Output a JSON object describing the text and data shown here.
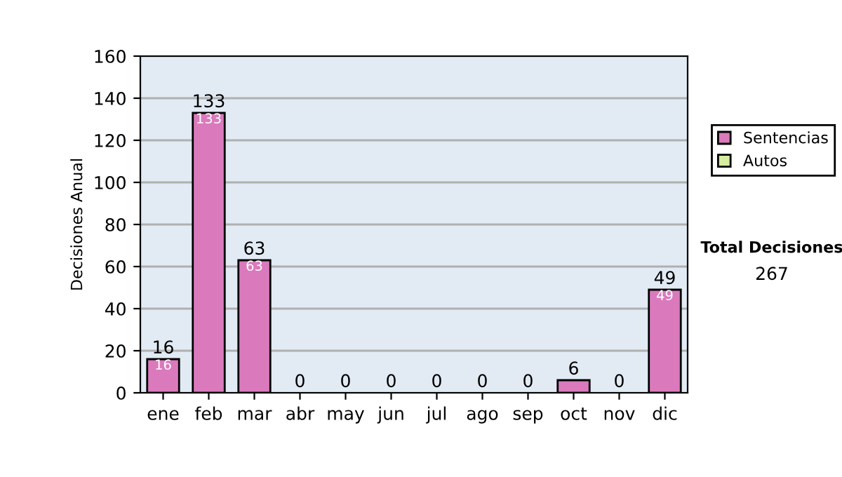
{
  "chart_data": {
    "type": "bar",
    "ylabel": "Decisiones Anual",
    "categories": [
      "ene",
      "feb",
      "mar",
      "abr",
      "may",
      "jun",
      "jul",
      "ago",
      "sep",
      "oct",
      "nov",
      "dic"
    ],
    "stacked": true,
    "series": [
      {
        "name": "Sentencias",
        "color": "#da7abd",
        "values": [
          16,
          133,
          63,
          0,
          0,
          0,
          0,
          0,
          0,
          6,
          0,
          49
        ],
        "value_labels": [
          "16",
          "133",
          "63",
          null,
          null,
          null,
          null,
          null,
          null,
          null,
          null,
          "49"
        ]
      },
      {
        "name": "Autos",
        "color": "#d6ec9e",
        "values": [
          0,
          0,
          0,
          0,
          0,
          0,
          0,
          0,
          0,
          0,
          0,
          0
        ]
      }
    ],
    "totals": [
      "16",
      "133",
      "63",
      "0",
      "0",
      "0",
      "0",
      "0",
      "0",
      "6",
      "0",
      "49"
    ],
    "ylim": [
      0,
      160
    ],
    "yticks": [
      0,
      20,
      40,
      60,
      80,
      100,
      120,
      140,
      160
    ],
    "grid": "y",
    "legend": "right",
    "annotations": [
      "Total Decisiones",
      "267"
    ]
  }
}
